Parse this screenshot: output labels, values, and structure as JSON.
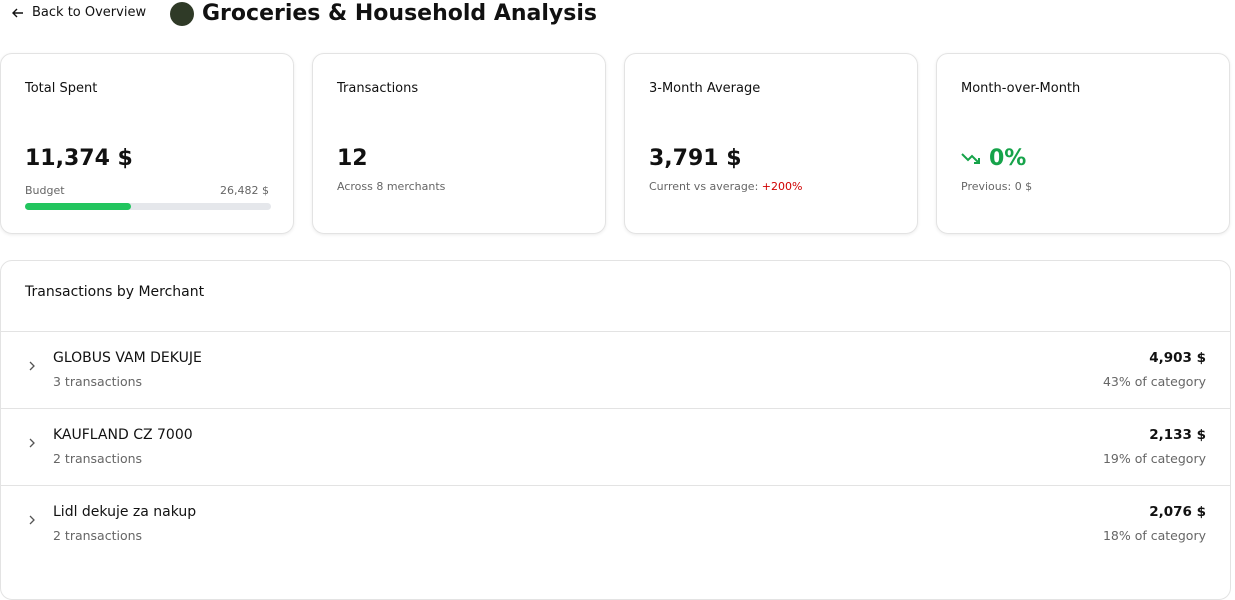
{
  "header": {
    "back": "Back to Overview",
    "title": "Groceries & Household Analysis"
  },
  "cards": {
    "total_spent": {
      "label": "Total Spent",
      "value": {
        "value": 11374,
        "label": "11,374 $"
      },
      "budget_label": "Budget",
      "budget": {
        "value": 26482,
        "label": "26,482 $"
      }
    },
    "transactions": {
      "label": "Transactions",
      "value": "12",
      "note": "Across 8 merchants"
    },
    "average": {
      "label": "3-Month Average",
      "value": "3,791 $",
      "note": "Current vs average:",
      "change": "+200%"
    },
    "mom": {
      "label": "Month-over-Month",
      "value": "0%",
      "note": "Previous: 0 $"
    }
  },
  "merchants": {
    "title": "Transactions by Merchant",
    "rows": [
      {
        "name": "GLOBUS VAM DEKUJE",
        "count": "3 transactions",
        "amount": "4,903 $",
        "share": "43% of category"
      },
      {
        "name": "KAUFLAND CZ 7000",
        "count": "2 transactions",
        "amount": "2,133 $",
        "share": "19% of category"
      },
      {
        "name": "Lidl dekuje za nakup",
        "count": "2 transactions",
        "amount": "2,076 $",
        "share": "18% of category"
      }
    ]
  }
}
